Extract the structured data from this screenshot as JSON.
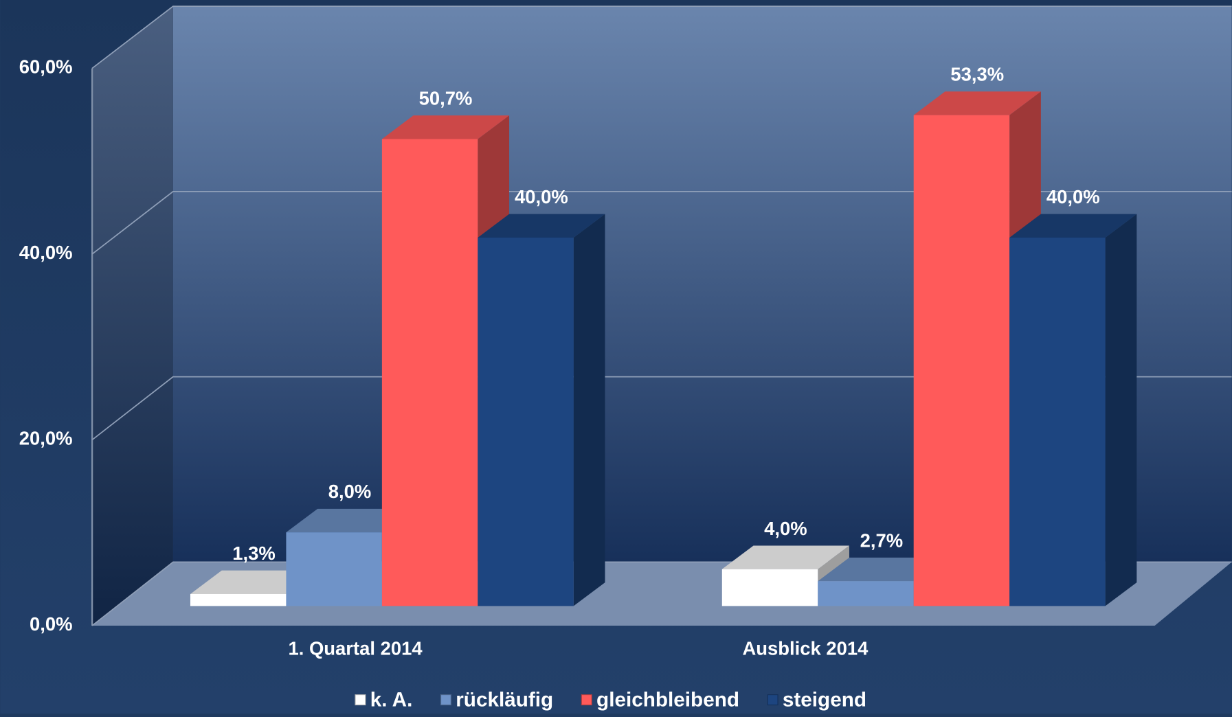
{
  "chart_data": {
    "type": "bar3d",
    "categories": [
      "1. Quartal 2014",
      "Ausblick 2014"
    ],
    "series": [
      {
        "name": "k. A.",
        "color": "#ffffff",
        "values": [
          1.3,
          4.0
        ],
        "value_labels": [
          "1,3%",
          "4,0%"
        ]
      },
      {
        "name": "rückläufig",
        "color": "#6f93c8",
        "values": [
          8.0,
          2.7
        ],
        "value_labels": [
          "8,0%",
          "2,7%"
        ]
      },
      {
        "name": "gleichbleibend",
        "color": "#ff5a5a",
        "values": [
          50.7,
          53.3
        ],
        "value_labels": [
          "50,7%",
          "53,3%"
        ]
      },
      {
        "name": "steigend",
        "color": "#1d4580",
        "values": [
          40.0,
          40.0
        ],
        "value_labels": [
          "40,0%",
          "40,0%"
        ]
      }
    ],
    "ylim": [
      0,
      60
    ],
    "yticks": [
      {
        "value": 0,
        "label": "0,0%"
      },
      {
        "value": 20,
        "label": "20,0%"
      },
      {
        "value": 40,
        "label": "40,0%"
      },
      {
        "value": 60,
        "label": "60,0%"
      }
    ],
    "grid": true,
    "legend": "bottom"
  }
}
